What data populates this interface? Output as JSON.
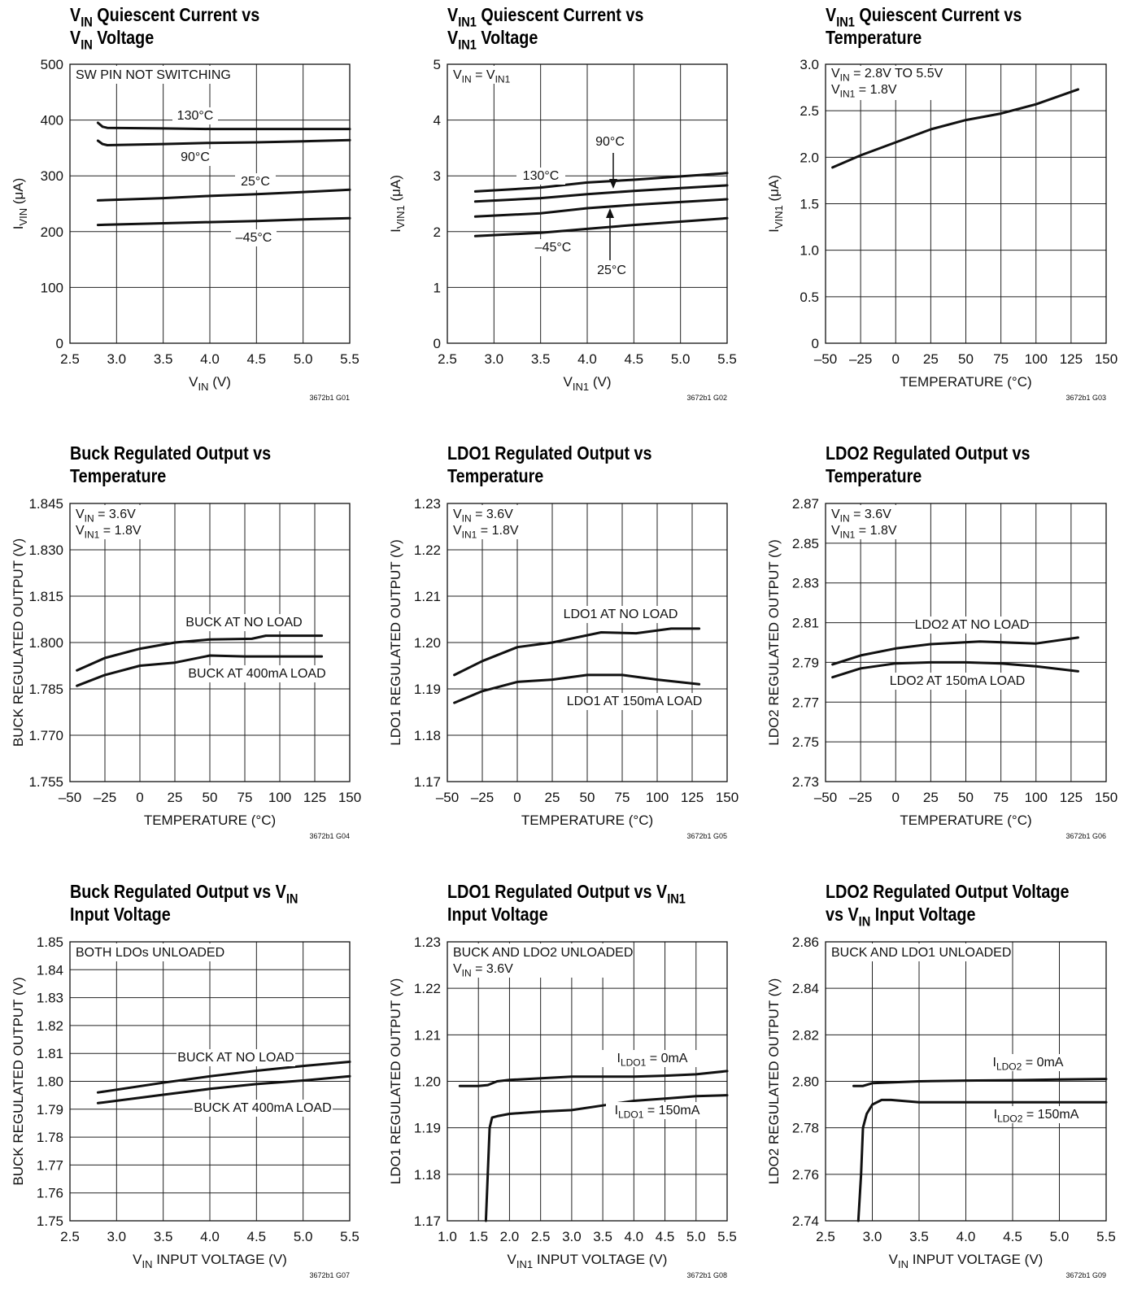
{
  "charts": [
    {
      "title": [
        "{V}_{IN} Quiescent Current vs",
        "{V}_{IN} Voltage"
      ],
      "xlabel": "{V}_{IN} (V)",
      "ylabel": "{I}_{VIN} (μA)",
      "code": "3672b1 G01",
      "notes": [
        "SW PIN NOT SWITCHING"
      ],
      "xticks": [
        "2.5",
        "3.0",
        "3.5",
        "4.0",
        "4.5",
        "5.0",
        "5.5"
      ],
      "yticks": [
        "0",
        "100",
        "200",
        "300",
        "400",
        "500"
      ],
      "labels": [
        "130°C",
        "90°C",
        "25°C",
        "–45°C"
      ]
    },
    {
      "title": [
        "{V}_{IN1} Quiescent Current vs",
        "{V}_{IN1} Voltage"
      ],
      "xlabel": "{V}_{IN1} (V)",
      "ylabel": "{I}_{VIN1} (μA)",
      "code": "3672b1 G02",
      "notes": [
        "{V}_{IN} = {V}_{IN1}"
      ],
      "xticks": [
        "2.5",
        "3.0",
        "3.5",
        "4.0",
        "4.5",
        "5.0",
        "5.5"
      ],
      "yticks": [
        "0",
        "1",
        "2",
        "3",
        "4",
        "5"
      ],
      "labels": [
        "130°C",
        "90°C",
        "–45°C",
        "25°C"
      ]
    },
    {
      "title": [
        "{V}_{IN1} Quiescent Current vs",
        "Temperature"
      ],
      "xlabel": "TEMPERATURE (°C)",
      "ylabel": "{I}_{VIN1} (μA)",
      "code": "3672b1 G03",
      "notes": [
        "{V}_{IN} = 2.8V TO 5.5V",
        "{V}_{IN1} = 1.8V"
      ],
      "xticks": [
        "–50",
        "–25",
        "0",
        "25",
        "50",
        "75",
        "100",
        "125",
        "150"
      ],
      "yticks": [
        "0",
        "0.5",
        "1.0",
        "1.5",
        "2.0",
        "2.5",
        "3.0"
      ],
      "labels": []
    },
    {
      "title": [
        "Buck Regulated Output vs",
        "Temperature"
      ],
      "xlabel": "TEMPERATURE (°C)",
      "ylabel": "BUCK REGULATED OUTPUT (V)",
      "code": "3672b1 G04",
      "notes": [
        "{V}_{IN} = 3.6V",
        "{V}_{IN1} = 1.8V"
      ],
      "xticks": [
        "–50",
        "–25",
        "0",
        "25",
        "50",
        "75",
        "100",
        "125",
        "150"
      ],
      "yticks": [
        "1.755",
        "1.770",
        "1.785",
        "1.800",
        "1.815",
        "1.830",
        "1.845"
      ],
      "labels": [
        "BUCK AT NO LOAD",
        "BUCK AT 400mA LOAD"
      ]
    },
    {
      "title": [
        "LDO1 Regulated Output vs",
        "Temperature"
      ],
      "xlabel": "TEMPERATURE (°C)",
      "ylabel": "LDO1 REGULATED OUTPUT (V)",
      "code": "3672b1 G05",
      "notes": [
        "{V}_{IN} = 3.6V",
        "{V}_{IN1} = 1.8V"
      ],
      "xticks": [
        "–50",
        "–25",
        "0",
        "25",
        "50",
        "75",
        "100",
        "125",
        "150"
      ],
      "yticks": [
        "1.17",
        "1.18",
        "1.19",
        "1.20",
        "1.21",
        "1.22",
        "1.23"
      ],
      "labels": [
        "LDO1 AT NO LOAD",
        "LDO1 AT 150mA LOAD"
      ]
    },
    {
      "title": [
        "LDO2 Regulated Output vs",
        "Temperature"
      ],
      "xlabel": "TEMPERATURE (°C)",
      "ylabel": "LDO2 REGULATED OUTPUT (V)",
      "code": "3672b1 G06",
      "notes": [
        "{V}_{IN} = 3.6V",
        "{V}_{IN1} = 1.8V"
      ],
      "xticks": [
        "–50",
        "–25",
        "0",
        "25",
        "50",
        "75",
        "100",
        "125",
        "150"
      ],
      "yticks": [
        "2.73",
        "2.75",
        "2.77",
        "2.79",
        "2.81",
        "2.83",
        "2.85",
        "2.87"
      ],
      "labels": [
        "LDO2 AT NO LOAD",
        "LDO2 AT 150mA LOAD"
      ]
    },
    {
      "title": [
        "Buck Regulated Output vs {V}_{IN}",
        "Input Voltage"
      ],
      "xlabel": "{V}_{IN} INPUT VOLTAGE (V)",
      "ylabel": "BUCK REGULATED OUTPUT (V)",
      "code": "3672b1 G07",
      "notes": [
        "BOTH LDOs UNLOADED"
      ],
      "xticks": [
        "2.5",
        "3.0",
        "3.5",
        "4.0",
        "4.5",
        "5.0",
        "5.5"
      ],
      "yticks": [
        "1.75",
        "1.76",
        "1.77",
        "1.78",
        "1.79",
        "1.80",
        "1.81",
        "1.82",
        "1.83",
        "1.84",
        "1.85"
      ],
      "labels": [
        "BUCK AT NO LOAD",
        "BUCK AT 400mA LOAD"
      ]
    },
    {
      "title": [
        "LDO1 Regulated Output vs {V}_{IN1}",
        "Input Voltage"
      ],
      "xlabel": "{V}_{IN1} INPUT VOLTAGE (V)",
      "ylabel": "LDO1 REGULATED OUTPUT (V)",
      "code": "3672b1 G08",
      "notes": [
        "BUCK AND LDO2 UNLOADED",
        "{V}_{IN} = 3.6V"
      ],
      "xticks": [
        "1.0",
        "1.5",
        "2.0",
        "2.5",
        "3.0",
        "3.5",
        "4.0",
        "4.5",
        "5.0",
        "5.5"
      ],
      "yticks": [
        "1.17",
        "1.18",
        "1.19",
        "1.20",
        "1.21",
        "1.22",
        "1.23"
      ],
      "labels": [
        "{I}_{LDO1} = 0mA",
        "{I}_{LDO1} = 150mA"
      ]
    },
    {
      "title": [
        "LDO2 Regulated Output Voltage",
        "vs {V}_{IN} Input Voltage"
      ],
      "xlabel": "{V}_{IN} INPUT VOLTAGE (V)",
      "ylabel": "LDO2 REGULATED OUTPUT (V)",
      "code": "3672b1 G09",
      "notes": [
        "BUCK AND LDO1 UNLOADED"
      ],
      "xticks": [
        "2.5",
        "3.0",
        "3.5",
        "4.0",
        "4.5",
        "5.0",
        "5.5"
      ],
      "yticks": [
        "2.74",
        "2.76",
        "2.78",
        "2.80",
        "2.82",
        "2.84",
        "2.86"
      ],
      "labels": [
        "{I}_{LDO2} = 0mA",
        "{I}_{LDO2} = 150mA"
      ]
    }
  ],
  "chart_data": [
    {
      "type": "line",
      "xlim": [
        2.5,
        5.5
      ],
      "ylim": [
        0,
        500
      ],
      "series": [
        {
          "name": "130°C",
          "x": [
            2.8,
            2.85,
            2.9,
            3.5,
            4.0,
            4.5,
            5.0,
            5.5
          ],
          "y": [
            395,
            388,
            386,
            385,
            384,
            384,
            384,
            384
          ]
        },
        {
          "name": "90°C",
          "x": [
            2.8,
            2.85,
            2.9,
            3.5,
            4.0,
            4.5,
            5.0,
            5.5
          ],
          "y": [
            363,
            357,
            355,
            357,
            359,
            360,
            362,
            364
          ]
        },
        {
          "name": "25°C",
          "x": [
            2.8,
            3.5,
            4.0,
            4.5,
            5.0,
            5.5
          ],
          "y": [
            256,
            260,
            264,
            267,
            271,
            275
          ]
        },
        {
          "name": "–45°C",
          "x": [
            2.8,
            3.5,
            4.0,
            4.5,
            5.0,
            5.5
          ],
          "y": [
            212,
            215,
            217,
            219,
            222,
            224
          ]
        }
      ]
    },
    {
      "type": "line",
      "xlim": [
        2.5,
        5.5
      ],
      "ylim": [
        0,
        5
      ],
      "series": [
        {
          "name": "130°C",
          "x": [
            2.8,
            3.5,
            4.0,
            4.5,
            5.0,
            5.5
          ],
          "y": [
            2.72,
            2.79,
            2.88,
            2.93,
            2.99,
            3.05
          ]
        },
        {
          "name": "90°C",
          "x": [
            2.8,
            3.5,
            4.0,
            4.5,
            5.0,
            5.5
          ],
          "y": [
            2.54,
            2.6,
            2.67,
            2.73,
            2.78,
            2.83
          ]
        },
        {
          "name": "25°C",
          "x": [
            2.8,
            3.5,
            4.0,
            4.5,
            5.0,
            5.5
          ],
          "y": [
            2.27,
            2.33,
            2.42,
            2.48,
            2.53,
            2.58
          ]
        },
        {
          "name": "–45°C",
          "x": [
            2.8,
            3.5,
            4.0,
            4.5,
            5.0,
            5.5
          ],
          "y": [
            1.92,
            1.98,
            2.05,
            2.12,
            2.18,
            2.24
          ]
        }
      ]
    },
    {
      "type": "line",
      "xlim": [
        -50,
        150
      ],
      "ylim": [
        0,
        3.0
      ],
      "series": [
        {
          "x": [
            -45,
            -25,
            0,
            25,
            50,
            75,
            100,
            130
          ],
          "y": [
            1.89,
            2.02,
            2.16,
            2.3,
            2.4,
            2.47,
            2.57,
            2.73
          ]
        }
      ]
    },
    {
      "type": "line",
      "xlim": [
        -50,
        150
      ],
      "ylim": [
        1.755,
        1.845
      ],
      "series": [
        {
          "name": "BUCK AT NO LOAD",
          "x": [
            -45,
            -25,
            0,
            25,
            50,
            80,
            90,
            130
          ],
          "y": [
            1.791,
            1.795,
            1.798,
            1.8,
            1.801,
            1.8012,
            1.8022,
            1.8022
          ]
        },
        {
          "name": "BUCK AT 400mA LOAD",
          "x": [
            -45,
            -25,
            0,
            25,
            50,
            75,
            100,
            130
          ],
          "y": [
            1.786,
            1.7895,
            1.7925,
            1.7935,
            1.7958,
            1.7955,
            1.7955,
            1.7955
          ]
        }
      ]
    },
    {
      "type": "line",
      "xlim": [
        -50,
        150
      ],
      "ylim": [
        1.17,
        1.23
      ],
      "series": [
        {
          "name": "LDO1 AT NO LOAD",
          "x": [
            -45,
            -25,
            0,
            25,
            60,
            85,
            110,
            130
          ],
          "y": [
            1.193,
            1.196,
            1.199,
            1.2,
            1.2022,
            1.202,
            1.203,
            1.203
          ]
        },
        {
          "name": "LDO1 AT 150mA LOAD",
          "x": [
            -45,
            -25,
            0,
            25,
            50,
            75,
            100,
            130
          ],
          "y": [
            1.187,
            1.1895,
            1.1915,
            1.192,
            1.193,
            1.193,
            1.192,
            1.191
          ]
        }
      ]
    },
    {
      "type": "line",
      "xlim": [
        -50,
        150
      ],
      "ylim": [
        2.73,
        2.87
      ],
      "series": [
        {
          "name": "LDO2 AT NO LOAD",
          "x": [
            -45,
            -25,
            0,
            25,
            60,
            100,
            130
          ],
          "y": [
            2.789,
            2.7935,
            2.797,
            2.7992,
            2.8005,
            2.7995,
            2.8025
          ]
        },
        {
          "name": "LDO2 AT 150mA LOAD",
          "x": [
            -45,
            -25,
            0,
            25,
            50,
            75,
            100,
            130
          ],
          "y": [
            2.7825,
            2.787,
            2.7895,
            2.79,
            2.79,
            2.7895,
            2.788,
            2.7855
          ]
        }
      ]
    },
    {
      "type": "line",
      "xlim": [
        2.5,
        5.5
      ],
      "ylim": [
        1.75,
        1.85
      ],
      "series": [
        {
          "name": "BUCK AT NO LOAD",
          "x": [
            2.8,
            3.5,
            4.0,
            4.5,
            5.0,
            5.5
          ],
          "y": [
            1.796,
            1.7995,
            1.8018,
            1.8038,
            1.8055,
            1.807
          ]
        },
        {
          "name": "BUCK AT 400mA LOAD",
          "x": [
            2.8,
            3.5,
            4.0,
            4.5,
            5.0,
            5.5
          ],
          "y": [
            1.7922,
            1.7952,
            1.7973,
            1.799,
            1.8003,
            1.8018
          ]
        }
      ]
    },
    {
      "type": "line",
      "xlim": [
        1.0,
        5.5
      ],
      "ylim": [
        1.17,
        1.23
      ],
      "series": [
        {
          "name": "{I}_{LDO1} = 0mA",
          "x": [
            1.2,
            1.5,
            1.65,
            1.8,
            2.0,
            3.0,
            4.0,
            4.5,
            5.0,
            5.5
          ],
          "y": [
            1.199,
            1.199,
            1.1992,
            1.2,
            1.2003,
            1.201,
            1.201,
            1.2012,
            1.2015,
            1.2022
          ]
        },
        {
          "name": "{I}_{LDO1} = 150mA",
          "x": [
            1.62,
            1.65,
            1.68,
            1.72,
            1.8,
            2.0,
            2.5,
            3.0,
            3.5,
            4.0,
            4.5,
            5.0,
            5.5
          ],
          "y": [
            1.17,
            1.18,
            1.19,
            1.1922,
            1.1925,
            1.193,
            1.1935,
            1.1938,
            1.1948,
            1.1958,
            1.1963,
            1.1968,
            1.197
          ]
        }
      ]
    },
    {
      "type": "line",
      "xlim": [
        2.5,
        5.5
      ],
      "ylim": [
        2.74,
        2.86
      ],
      "series": [
        {
          "name": "{I}_{LDO2} = 0mA",
          "x": [
            2.8,
            2.9,
            3.0,
            3.5,
            4.0,
            4.5,
            5.0,
            5.5
          ],
          "y": [
            2.798,
            2.798,
            2.7992,
            2.8,
            2.8003,
            2.8005,
            2.8008,
            2.801
          ]
        },
        {
          "name": "{I}_{LDO2} = 150mA",
          "x": [
            2.85,
            2.88,
            2.9,
            2.94,
            3.0,
            3.1,
            3.2,
            3.5,
            4.0,
            4.5,
            5.0,
            5.5
          ],
          "y": [
            2.74,
            2.76,
            2.78,
            2.786,
            2.79,
            2.792,
            2.792,
            2.791,
            2.791,
            2.791,
            2.791,
            2.791
          ]
        }
      ]
    }
  ]
}
